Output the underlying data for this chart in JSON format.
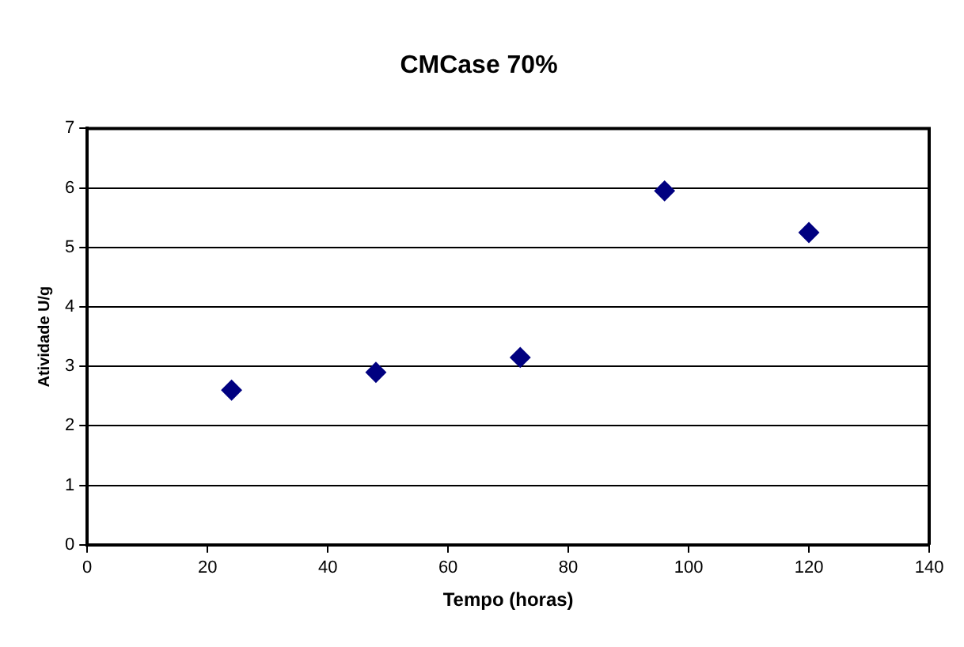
{
  "chart_data": {
    "type": "scatter",
    "title": "CMCase 70%",
    "xlabel": "Tempo (horas)",
    "ylabel": "Atividade U/g",
    "x": [
      24,
      48,
      72,
      96,
      120
    ],
    "series": [
      {
        "color": "#000080",
        "values": [
          2.6,
          2.9,
          3.15,
          5.95,
          5.25
        ]
      }
    ],
    "xlim": [
      0,
      140
    ],
    "xticks": [
      0,
      20,
      40,
      60,
      80,
      100,
      120,
      140
    ],
    "ylim": [
      0,
      7
    ],
    "yticks": [
      0,
      1,
      2,
      3,
      4,
      5,
      6,
      7
    ],
    "grid": "y",
    "marker": "diamond",
    "legend": false
  }
}
